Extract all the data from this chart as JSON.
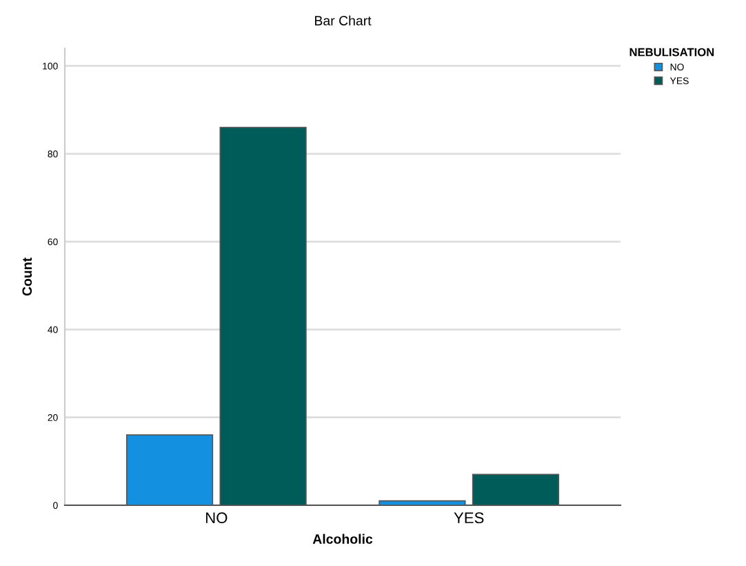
{
  "chart_data": {
    "type": "bar",
    "title": "Bar Chart",
    "xlabel": "Alcoholic",
    "ylabel": "Count",
    "legend_title": "NEBULISATION",
    "categories": [
      "NO",
      "YES"
    ],
    "series": [
      {
        "name": "NO",
        "color": "#1490e0",
        "values": [
          16,
          1
        ]
      },
      {
        "name": "YES",
        "color": "#005c58",
        "values": [
          86,
          7
        ]
      }
    ],
    "ylim": [
      0,
      104
    ],
    "yticks": [
      0,
      20,
      40,
      60,
      80,
      100
    ],
    "grid": "y",
    "legend": "top right"
  }
}
